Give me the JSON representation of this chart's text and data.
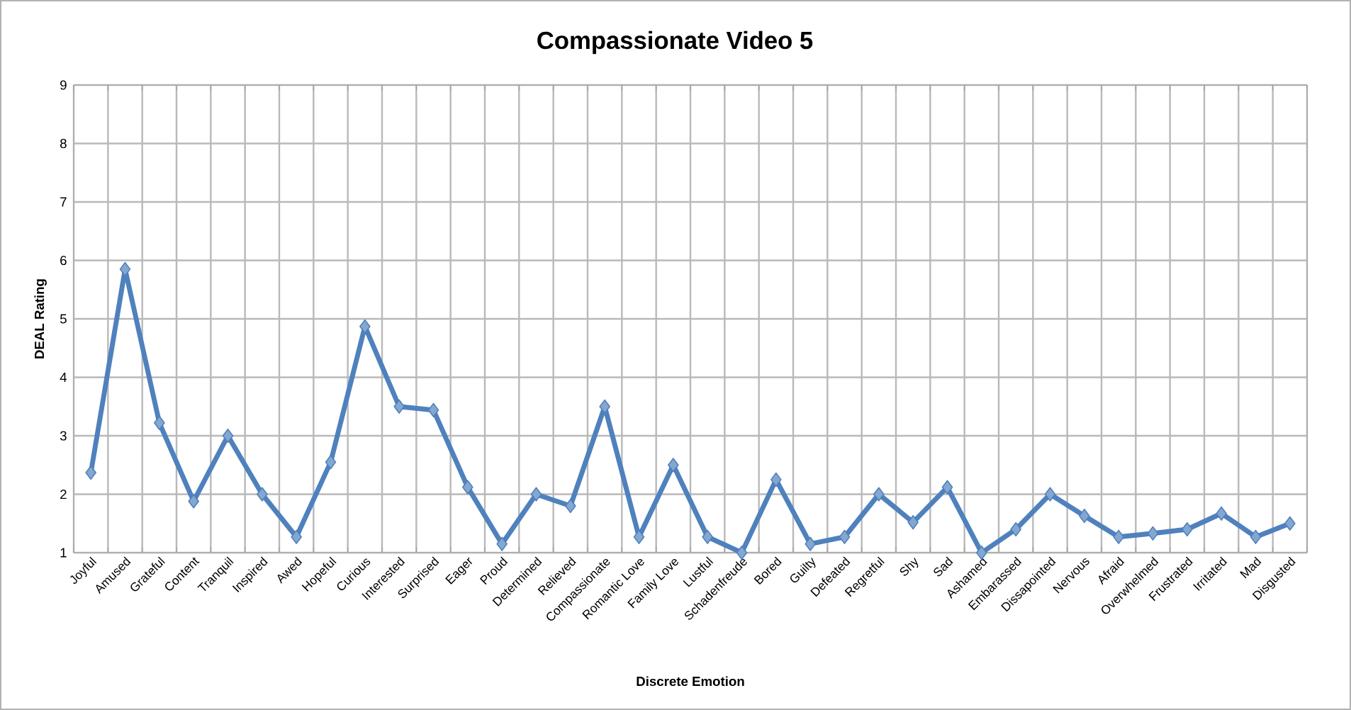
{
  "chart_data": {
    "type": "line",
    "title": "Compassionate Video 5",
    "xlabel": "Discrete Emotion",
    "ylabel": "DEAL Rating",
    "categories": [
      "Joyful",
      "Amused",
      "Grateful",
      "Content",
      "Tranquil",
      "Inspired",
      "Awed",
      "Hopeful",
      "Curious",
      "Interested",
      "Surprised",
      "Eager",
      "Proud",
      "Determined",
      "Relieved",
      "Compassionate",
      "Romantic Love",
      "Family Love",
      "Lustful",
      "Schadenfreude",
      "Bored",
      "Guilty",
      "Defeated",
      "Regretful",
      "Shy",
      "Sad",
      "Ashamed",
      "Embarassed",
      "Dissapointed",
      "Nervous",
      "Afraid",
      "Overwhelmed",
      "Frustrated",
      "Irritated",
      "Mad",
      "Disgusted"
    ],
    "values": [
      2.37,
      5.85,
      3.22,
      1.88,
      3.0,
      2.0,
      1.27,
      2.55,
      4.87,
      3.5,
      3.44,
      2.12,
      1.15,
      2.0,
      1.8,
      3.5,
      1.27,
      2.5,
      1.27,
      1.0,
      2.25,
      1.15,
      1.27,
      2.0,
      1.52,
      2.12,
      1.0,
      1.4,
      2.0,
      1.63,
      1.27,
      1.33,
      1.4,
      1.67,
      1.27,
      1.5
    ],
    "color": "#4f81bd",
    "marker": "diamond",
    "line_style": "solid",
    "grid": true,
    "ylim": [
      1,
      9
    ],
    "yticks": [
      1,
      2,
      3,
      4,
      5,
      6,
      7,
      8,
      9
    ]
  }
}
